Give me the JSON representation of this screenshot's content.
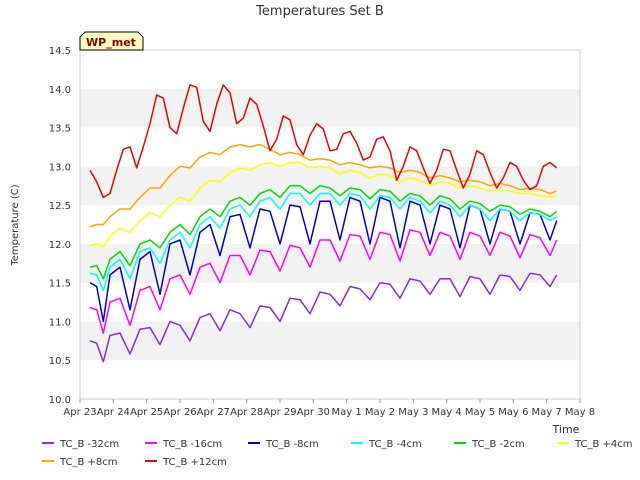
{
  "chart_data": {
    "type": "line",
    "title": "Temperatures Set B",
    "xlabel": "Time",
    "ylabel": "Temperature (C)",
    "ylim": [
      10.0,
      14.5
    ],
    "yticks": [
      10.0,
      10.5,
      11.0,
      11.5,
      12.0,
      12.5,
      13.0,
      13.5,
      14.0,
      14.5
    ],
    "ytick_labels": [
      "10.0",
      "10.5",
      "11.0",
      "11.5",
      "12.0",
      "12.5",
      "13.0",
      "13.5",
      "14.0",
      "14.5"
    ],
    "xlim": [
      0,
      15
    ],
    "xticks": [
      0,
      1,
      2,
      3,
      4,
      5,
      6,
      7,
      8,
      9,
      10,
      11,
      12,
      13,
      14,
      15
    ],
    "xtick_labels": [
      "Apr 23",
      "Apr 24",
      "Apr 25",
      "Apr 26",
      "Apr 27",
      "Apr 28",
      "Apr 29",
      "Apr 30",
      "May 1",
      "May 2",
      "May 3",
      "May 4",
      "May 5",
      "May 6",
      "May 7",
      "May 8"
    ],
    "grid": "horizontal bands",
    "annotation": "WP_met",
    "legend_position": "bottom",
    "series": [
      {
        "name": "TC_B -32cm",
        "color": "#8a2be2",
        "x": [
          0.3,
          0.5,
          0.7,
          0.9,
          1.2,
          1.5,
          1.8,
          2.1,
          2.4,
          2.7,
          3.0,
          3.3,
          3.6,
          3.9,
          4.2,
          4.5,
          4.8,
          5.1,
          5.4,
          5.7,
          6.0,
          6.3,
          6.6,
          6.9,
          7.2,
          7.5,
          7.8,
          8.1,
          8.4,
          8.7,
          9.0,
          9.3,
          9.6,
          9.9,
          10.2,
          10.5,
          10.8,
          11.1,
          11.4,
          11.7,
          12.0,
          12.3,
          12.6,
          12.9,
          13.2,
          13.5,
          13.8,
          14.1,
          14.3
        ],
        "y": [
          10.75,
          10.72,
          10.48,
          10.82,
          10.85,
          10.58,
          10.9,
          10.92,
          10.7,
          11.0,
          10.95,
          10.75,
          11.05,
          11.1,
          10.88,
          11.15,
          11.1,
          10.92,
          11.2,
          11.18,
          11.0,
          11.3,
          11.28,
          11.1,
          11.38,
          11.35,
          11.2,
          11.45,
          11.42,
          11.28,
          11.5,
          11.48,
          11.3,
          11.55,
          11.52,
          11.35,
          11.55,
          11.55,
          11.32,
          11.58,
          11.55,
          11.35,
          11.6,
          11.58,
          11.4,
          11.62,
          11.6,
          11.45,
          11.6
        ]
      },
      {
        "name": "TC_B -16cm",
        "color": "#ff00ff",
        "x": [
          0.3,
          0.5,
          0.7,
          0.9,
          1.2,
          1.5,
          1.8,
          2.1,
          2.4,
          2.7,
          3.0,
          3.3,
          3.6,
          3.9,
          4.2,
          4.5,
          4.8,
          5.1,
          5.4,
          5.7,
          6.0,
          6.3,
          6.6,
          6.9,
          7.2,
          7.5,
          7.8,
          8.1,
          8.4,
          8.7,
          9.0,
          9.3,
          9.6,
          9.9,
          10.2,
          10.5,
          10.8,
          11.1,
          11.4,
          11.7,
          12.0,
          12.3,
          12.6,
          12.9,
          13.2,
          13.5,
          13.8,
          14.1,
          14.3
        ],
        "y": [
          11.18,
          11.15,
          10.85,
          11.25,
          11.3,
          10.95,
          11.4,
          11.45,
          11.15,
          11.55,
          11.6,
          11.35,
          11.7,
          11.75,
          11.5,
          11.85,
          11.85,
          11.6,
          11.92,
          11.9,
          11.65,
          11.98,
          11.95,
          11.7,
          12.05,
          12.05,
          11.78,
          12.12,
          12.1,
          11.8,
          12.15,
          12.12,
          11.78,
          12.18,
          12.15,
          11.85,
          12.15,
          12.1,
          11.8,
          12.15,
          12.1,
          11.85,
          12.15,
          12.1,
          11.82,
          12.12,
          12.08,
          11.85,
          12.05
        ]
      },
      {
        "name": "TC_B -8cm",
        "color": "#0000cd",
        "x": [
          0.3,
          0.5,
          0.7,
          0.9,
          1.2,
          1.5,
          1.8,
          2.1,
          2.4,
          2.7,
          3.0,
          3.3,
          3.6,
          3.9,
          4.2,
          4.5,
          4.8,
          5.1,
          5.4,
          5.7,
          6.0,
          6.3,
          6.6,
          6.9,
          7.2,
          7.5,
          7.8,
          8.1,
          8.4,
          8.7,
          9.0,
          9.3,
          9.6,
          9.9,
          10.2,
          10.5,
          10.8,
          11.1,
          11.4,
          11.7,
          12.0,
          12.3,
          12.6,
          12.9,
          13.2,
          13.5,
          13.8,
          14.1,
          14.3
        ],
        "y": [
          11.5,
          11.45,
          11.0,
          11.6,
          11.7,
          11.15,
          11.8,
          11.9,
          11.35,
          12.0,
          12.05,
          11.6,
          12.15,
          12.25,
          11.85,
          12.35,
          12.38,
          11.95,
          12.45,
          12.42,
          12.0,
          12.5,
          12.48,
          12.0,
          12.55,
          12.55,
          12.05,
          12.6,
          12.55,
          12.0,
          12.6,
          12.55,
          11.95,
          12.55,
          12.5,
          12.0,
          12.5,
          12.45,
          11.95,
          12.5,
          12.45,
          12.0,
          12.45,
          12.42,
          12.0,
          12.4,
          12.38,
          12.05,
          12.3
        ]
      },
      {
        "name": "TC_B -4cm",
        "color": "#00ffff",
        "x": [
          0.3,
          0.5,
          0.7,
          0.9,
          1.2,
          1.5,
          1.8,
          2.1,
          2.4,
          2.7,
          3.0,
          3.3,
          3.6,
          3.9,
          4.2,
          4.5,
          4.8,
          5.1,
          5.4,
          5.7,
          6.0,
          6.3,
          6.6,
          6.9,
          7.2,
          7.5,
          7.8,
          8.1,
          8.4,
          8.7,
          9.0,
          9.3,
          9.6,
          9.9,
          10.2,
          10.5,
          10.8,
          11.1,
          11.4,
          11.7,
          12.0,
          12.3,
          12.6,
          12.9,
          13.2,
          13.5,
          13.8,
          14.1,
          14.3
        ],
        "y": [
          11.62,
          11.6,
          11.4,
          11.7,
          11.8,
          11.55,
          11.9,
          11.95,
          11.75,
          12.05,
          12.15,
          11.95,
          12.25,
          12.35,
          12.2,
          12.45,
          12.5,
          12.35,
          12.55,
          12.6,
          12.45,
          12.65,
          12.65,
          12.5,
          12.65,
          12.65,
          12.5,
          12.65,
          12.62,
          12.45,
          12.62,
          12.6,
          12.45,
          12.6,
          12.55,
          12.4,
          12.55,
          12.5,
          12.35,
          12.5,
          12.45,
          12.3,
          12.45,
          12.42,
          12.3,
          12.4,
          12.38,
          12.3,
          12.35
        ]
      },
      {
        "name": "TC_B -2cm",
        "color": "#00dd00",
        "x": [
          0.3,
          0.5,
          0.7,
          0.9,
          1.2,
          1.5,
          1.8,
          2.1,
          2.4,
          2.7,
          3.0,
          3.3,
          3.6,
          3.9,
          4.2,
          4.5,
          4.8,
          5.1,
          5.4,
          5.7,
          6.0,
          6.3,
          6.6,
          6.9,
          7.2,
          7.5,
          7.8,
          8.1,
          8.4,
          8.7,
          9.0,
          9.3,
          9.6,
          9.9,
          10.2,
          10.5,
          10.8,
          11.1,
          11.4,
          11.7,
          12.0,
          12.3,
          12.6,
          12.9,
          13.2,
          13.5,
          13.8,
          14.1,
          14.3
        ],
        "y": [
          11.7,
          11.72,
          11.55,
          11.8,
          11.9,
          11.72,
          12.0,
          12.05,
          11.95,
          12.15,
          12.25,
          12.12,
          12.35,
          12.45,
          12.35,
          12.55,
          12.6,
          12.5,
          12.65,
          12.7,
          12.6,
          12.75,
          12.75,
          12.65,
          12.75,
          12.72,
          12.62,
          12.72,
          12.7,
          12.58,
          12.7,
          12.68,
          12.55,
          12.65,
          12.62,
          12.5,
          12.62,
          12.58,
          12.45,
          12.55,
          12.52,
          12.42,
          12.5,
          12.48,
          12.38,
          12.45,
          12.42,
          12.35,
          12.42
        ]
      },
      {
        "name": "TC_B +4cm",
        "color": "#ffff00",
        "x": [
          0.3,
          0.5,
          0.7,
          0.9,
          1.2,
          1.5,
          1.8,
          2.1,
          2.4,
          2.7,
          3.0,
          3.3,
          3.6,
          3.9,
          4.2,
          4.5,
          4.8,
          5.1,
          5.4,
          5.7,
          6.0,
          6.3,
          6.6,
          6.9,
          7.2,
          7.5,
          7.8,
          8.1,
          8.4,
          8.7,
          9.0,
          9.3,
          9.6,
          9.9,
          10.2,
          10.5,
          10.8,
          11.1,
          11.4,
          11.7,
          12.0,
          12.3,
          12.6,
          12.9,
          13.2,
          13.5,
          13.8,
          14.1,
          14.3
        ],
        "y": [
          11.98,
          12.0,
          11.95,
          12.1,
          12.2,
          12.15,
          12.3,
          12.4,
          12.35,
          12.5,
          12.6,
          12.55,
          12.72,
          12.82,
          12.8,
          12.92,
          12.98,
          12.95,
          13.02,
          13.05,
          13.0,
          13.05,
          13.05,
          12.98,
          13.0,
          12.98,
          12.9,
          12.95,
          12.92,
          12.85,
          12.9,
          12.88,
          12.8,
          12.85,
          12.82,
          12.75,
          12.8,
          12.78,
          12.72,
          12.75,
          12.72,
          12.68,
          12.7,
          12.68,
          12.65,
          12.65,
          12.62,
          12.6,
          12.62
        ]
      },
      {
        "name": "TC_B +8cm",
        "color": "#ffa500",
        "x": [
          0.3,
          0.5,
          0.7,
          0.9,
          1.2,
          1.5,
          1.8,
          2.1,
          2.4,
          2.7,
          3.0,
          3.3,
          3.6,
          3.9,
          4.2,
          4.5,
          4.8,
          5.1,
          5.4,
          5.7,
          6.0,
          6.3,
          6.6,
          6.9,
          7.2,
          7.5,
          7.8,
          8.1,
          8.4,
          8.7,
          9.0,
          9.3,
          9.6,
          9.9,
          10.2,
          10.5,
          10.8,
          11.1,
          11.4,
          11.7,
          12.0,
          12.3,
          12.6,
          12.9,
          13.2,
          13.5,
          13.8,
          14.1,
          14.3
        ],
        "y": [
          12.22,
          12.25,
          12.25,
          12.35,
          12.45,
          12.45,
          12.6,
          12.72,
          12.72,
          12.88,
          13.0,
          12.98,
          13.12,
          13.18,
          13.15,
          13.25,
          13.28,
          13.25,
          13.28,
          13.22,
          13.15,
          13.18,
          13.15,
          13.08,
          13.1,
          13.08,
          13.02,
          13.05,
          13.02,
          12.98,
          13.0,
          12.98,
          12.92,
          12.95,
          12.92,
          12.85,
          12.88,
          12.85,
          12.8,
          12.82,
          12.8,
          12.75,
          12.78,
          12.75,
          12.7,
          12.72,
          12.7,
          12.65,
          12.68
        ]
      },
      {
        "name": "TC_B +12cm",
        "color": "#ee0000",
        "x": [
          0.3,
          0.5,
          0.7,
          0.9,
          1.1,
          1.3,
          1.5,
          1.7,
          1.9,
          2.1,
          2.3,
          2.5,
          2.7,
          2.9,
          3.1,
          3.3,
          3.5,
          3.7,
          3.9,
          4.1,
          4.3,
          4.5,
          4.7,
          4.9,
          5.1,
          5.3,
          5.5,
          5.7,
          5.9,
          6.1,
          6.3,
          6.5,
          6.7,
          6.9,
          7.1,
          7.3,
          7.5,
          7.7,
          7.9,
          8.1,
          8.3,
          8.5,
          8.7,
          8.9,
          9.1,
          9.3,
          9.5,
          9.7,
          9.9,
          10.1,
          10.3,
          10.5,
          10.7,
          10.9,
          11.1,
          11.3,
          11.5,
          11.7,
          11.9,
          12.1,
          12.3,
          12.5,
          12.7,
          12.9,
          13.1,
          13.3,
          13.5,
          13.7,
          13.9,
          14.1,
          14.3
        ],
        "y": [
          12.95,
          12.8,
          12.6,
          12.65,
          12.95,
          13.22,
          13.25,
          12.98,
          13.25,
          13.55,
          13.92,
          13.88,
          13.5,
          13.42,
          13.75,
          14.05,
          14.02,
          13.58,
          13.45,
          13.8,
          14.05,
          13.95,
          13.55,
          13.62,
          13.88,
          13.8,
          13.52,
          13.2,
          13.35,
          13.65,
          13.6,
          13.28,
          13.15,
          13.4,
          13.55,
          13.48,
          13.2,
          13.22,
          13.42,
          13.45,
          13.3,
          13.08,
          13.12,
          13.35,
          13.38,
          13.2,
          12.82,
          13.0,
          13.25,
          13.2,
          12.98,
          12.78,
          12.95,
          13.22,
          13.2,
          12.95,
          12.72,
          12.9,
          13.2,
          13.15,
          12.92,
          12.72,
          12.85,
          13.05,
          13.0,
          12.82,
          12.7,
          12.75,
          13.0,
          13.05,
          12.98
        ]
      }
    ]
  }
}
